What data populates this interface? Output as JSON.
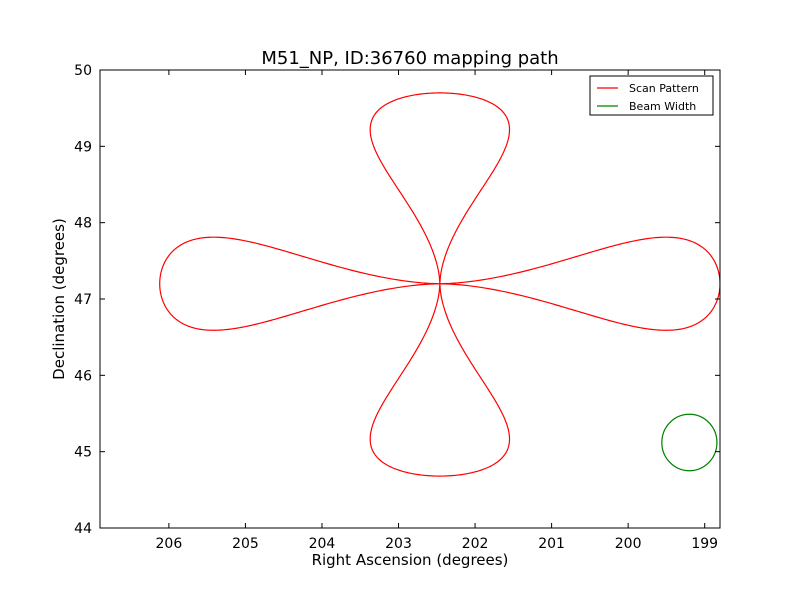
{
  "chart_data": {
    "type": "line",
    "title": "M51_NP, ID:36760 mapping path",
    "xlabel": "Right Ascension (degrees)",
    "ylabel": "Declination (degrees)",
    "xlim": [
      206.9,
      198.8
    ],
    "ylim": [
      44,
      50
    ],
    "xticks": [
      206,
      205,
      204,
      203,
      202,
      201,
      200,
      199
    ],
    "yticks": [
      44,
      45,
      46,
      47,
      48,
      49,
      50
    ],
    "grid": false,
    "legend_location": "top-right",
    "series": [
      {
        "name": "Scan Pattern",
        "color": "#ff0000",
        "center": [
          202.46,
          47.2
        ],
        "lobes": [
          {
            "tip": [
              198.8,
              47.2
            ],
            "half_width": 0.67
          },
          {
            "tip": [
              202.46,
              49.7
            ],
            "half_width": 1.0
          },
          {
            "tip": [
              206.12,
              47.2
            ],
            "half_width": 0.67
          },
          {
            "tip": [
              202.46,
              44.68
            ],
            "half_width": 1.0
          }
        ]
      },
      {
        "name": "Beam Width",
        "color": "#008000",
        "center": [
          199.2,
          45.12
        ],
        "radius_ra": 0.36,
        "radius_dec": 0.37
      }
    ]
  }
}
